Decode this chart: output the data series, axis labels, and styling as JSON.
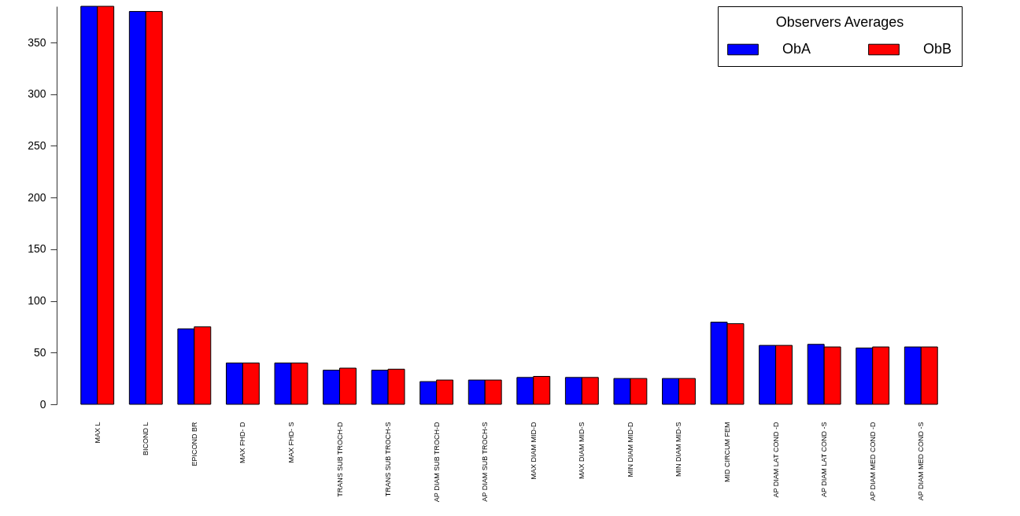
{
  "chart_data": {
    "type": "bar",
    "legend_title": "Observers Averages",
    "legend": "top right",
    "grid": false,
    "categories": [
      "MAX L",
      "BICOND L",
      "EPICOND BR",
      "MAX FHD- D",
      "MAX FHD- S",
      "TRANS SUB TROCH-D",
      "TRANS SUB TROCH-S",
      "AP DIAM SUB TROCH-D",
      "AP DIAM SUB TROCH-S",
      "MAX DIAM MID-D",
      "MAX DIAM MID-S",
      "MIN DIAM MID-D",
      "MIN DIAM MID-S",
      "MID CIRCUM FEM",
      "AP DIAM LAT COND -D",
      "AP DIAM LAT COND -S",
      "AP DIAM MED COND -D",
      "AP DIAM MED COND -S"
    ],
    "series": [
      {
        "name": "ObA",
        "color": "#0000ff",
        "values": [
          385,
          380,
          73,
          40,
          40,
          33,
          33,
          22,
          23.5,
          26,
          26,
          25,
          25,
          79.5,
          57,
          58,
          54.5,
          55.5
        ]
      },
      {
        "name": "ObB",
        "color": "#ff0000",
        "values": [
          385,
          380,
          75,
          40,
          40,
          35,
          34,
          23.5,
          23.5,
          27,
          26,
          25,
          25,
          78,
          57,
          55.5,
          55.5,
          55.5
        ]
      }
    ],
    "ylim": [
      0,
      385
    ],
    "yticks": [
      0,
      50,
      100,
      150,
      200,
      250,
      300,
      350
    ]
  }
}
